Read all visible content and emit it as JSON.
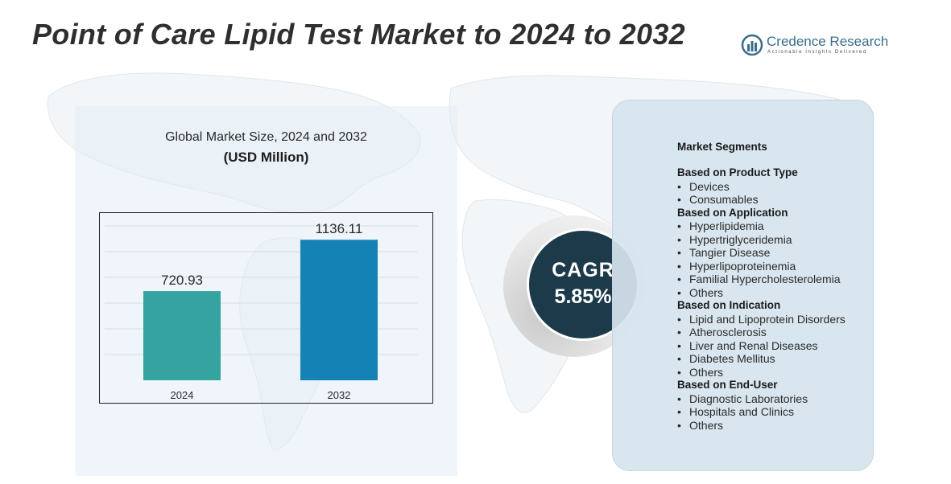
{
  "title": "Point of Care Lipid Test Market to 2024 to 2032",
  "logo": {
    "name": "Credence Research",
    "tagline": "Actionable Insights Delivered"
  },
  "chart_data": {
    "type": "bar",
    "title": "Global Market Size, 2024 and 2032",
    "unit": "(USD Million)",
    "categories": [
      "2024",
      "2032"
    ],
    "values": [
      720.93,
      1136.11
    ],
    "value_labels": [
      "720.93",
      "1136.11"
    ],
    "colors": [
      "#35a4a0",
      "#1582b5"
    ],
    "ylim": [
      0,
      1300
    ],
    "grid": true,
    "xlabel": "",
    "ylabel": ""
  },
  "cagr": {
    "label": "CAGR",
    "value": "5.85%"
  },
  "segments": {
    "heading": "Market Segments",
    "groups": [
      {
        "title": "Based on Product Type",
        "items": [
          "Devices",
          "Consumables"
        ]
      },
      {
        "title": "Based on Application",
        "items": [
          "Hyperlipidemia",
          "Hypertriglyceridemia",
          "Tangier Disease",
          "Hyperlipoproteinemia",
          "Familial Hypercholesterolemia",
          "Others"
        ]
      },
      {
        "title": "Based on Indication",
        "items": [
          "Lipid and Lipoprotein Disorders",
          "Atherosclerosis",
          "Liver and Renal Diseases",
          "Diabetes Mellitus",
          "Others"
        ]
      },
      {
        "title": "Based on End-User",
        "items": [
          "Diagnostic Laboratories",
          "Hospitals and Clinics",
          "Others"
        ]
      }
    ]
  }
}
